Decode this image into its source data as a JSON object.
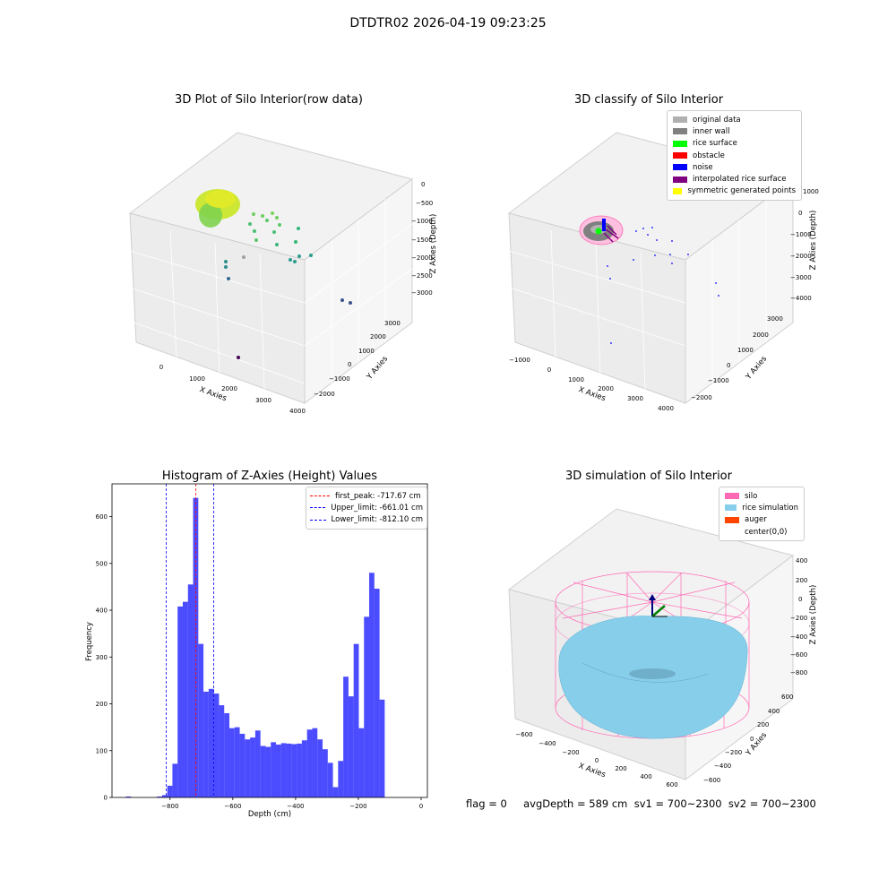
{
  "suptitle": "DTDTR02 2026-04-19 09:23:25",
  "panels": {
    "raw": {
      "title": "3D Plot of Silo Interior(row data)",
      "xlabel": "X Axies",
      "ylabel": "Y Axies",
      "zlabel": "Z Axies (Depth)",
      "xticks": [
        "0",
        "1000",
        "2000",
        "3000",
        "4000"
      ],
      "yticks": [
        "3000",
        "2000",
        "1000",
        "0",
        "−1000",
        "−2000"
      ],
      "zticks": [
        "0",
        "−500",
        "−1000",
        "−1500",
        "−2000",
        "−2500",
        "−3000"
      ]
    },
    "classify": {
      "title": "3D classify of Silo Interior",
      "xlabel": "X Axies",
      "ylabel": "Y Axies",
      "zlabel": "Z Axies (Depth)",
      "xticks": [
        "−1000",
        "0",
        "1000",
        "2000",
        "3000",
        "4000"
      ],
      "yticks": [
        "3000",
        "2000",
        "1000",
        "0",
        "−1000",
        "−2000"
      ],
      "zticks": [
        "1000",
        "0",
        "−1000",
        "−2000",
        "−3000",
        "−4000"
      ],
      "legend": [
        {
          "label": "original data",
          "color": "#b0b0b0"
        },
        {
          "label": "inner wall",
          "color": "#808080"
        },
        {
          "label": "rice surface",
          "color": "#00ff00"
        },
        {
          "label": "obstacle",
          "color": "#ff0000"
        },
        {
          "label": "noise",
          "color": "#0000ff"
        },
        {
          "label": "interpolated rice surface",
          "color": "#800080"
        },
        {
          "label": "symmetric generated points",
          "color": "#ffff00"
        }
      ]
    },
    "sim": {
      "title": "3D simulation of Silo Interior",
      "xlabel": "X Axies",
      "ylabel": "Y Axies",
      "zlabel": "Z Axies (Depth)",
      "xticks": [
        "−600",
        "−400",
        "−200",
        "0",
        "200",
        "400",
        "600"
      ],
      "yticks": [
        "600",
        "400",
        "200",
        "0",
        "−200",
        "−400",
        "−600"
      ],
      "zticks": [
        "400",
        "200",
        "0",
        "−200",
        "−400",
        "−600",
        "−800"
      ],
      "legend": [
        {
          "label": "silo",
          "color": "#ff69b4"
        },
        {
          "label": "rice simulation",
          "color": "#87ceeb"
        },
        {
          "label": "auger",
          "color": "#ff4500"
        },
        {
          "label": "center(0,0)",
          "color": "#ffffff"
        }
      ],
      "status": "flag = 0     avgDepth = 589 cm  sv1 = 700~2300  sv2 = 700~2300"
    }
  },
  "chart_data": {
    "type": "bar",
    "title": "Histogram of Z-Axies (Height) Values",
    "xlabel": "Depth (cm)",
    "ylabel": "Frequency",
    "xlim": [
      -985,
      20
    ],
    "ylim": [
      0,
      670
    ],
    "xticks": [
      -800,
      -600,
      -400,
      -200,
      0
    ],
    "yticks": [
      0,
      100,
      200,
      300,
      400,
      500,
      600
    ],
    "bin_width": 16.5,
    "bin_starts": [
      -941,
      -924.5,
      -908,
      -891.5,
      -875,
      -858.5,
      -842,
      -825.5,
      -809,
      -792.5,
      -776,
      -759.5,
      -743,
      -726.5,
      -710,
      -693.5,
      -677,
      -660.5,
      -644,
      -627.5,
      -611,
      -594.5,
      -578,
      -561.5,
      -545,
      -528.5,
      -512,
      -495.5,
      -479,
      -462.5,
      -446,
      -429.5,
      -413,
      -396.5,
      -380,
      -363.5,
      -347,
      -330.5,
      -314,
      -297.5,
      -281,
      -264.5,
      -248,
      -231.5,
      -215,
      -198.5,
      -182,
      -165.5,
      -149,
      -132.5,
      -116,
      -99.5,
      -83,
      -66.5,
      -50,
      -33.5,
      -17
    ],
    "values": [
      2,
      0,
      0,
      0,
      0,
      0,
      2,
      5,
      25,
      72,
      408,
      418,
      455,
      640,
      328,
      226,
      232,
      222,
      197,
      180,
      148,
      150,
      136,
      124,
      128,
      143,
      110,
      108,
      118,
      113,
      116,
      115,
      114,
      115,
      122,
      145,
      148,
      124,
      103,
      74,
      22,
      78,
      258,
      216,
      328,
      148,
      386,
      480,
      446,
      209,
      0,
      0,
      0,
      0,
      0,
      0,
      0
    ],
    "vlines": [
      {
        "name": "first_peak: -717.67 cm",
        "x": -717.67,
        "color": "#ff0000"
      },
      {
        "name": "Upper_limit: -661.01 cm",
        "x": -661.01,
        "color": "#0000ff"
      },
      {
        "name": "Lower_limit: -812.10 cm",
        "x": -812.1,
        "color": "#0000ff"
      }
    ],
    "bar_color": "#0000ff",
    "bar_alpha": 0.7
  }
}
